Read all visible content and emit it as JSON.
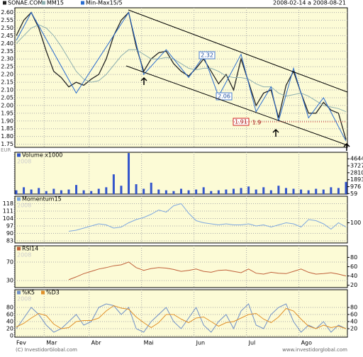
{
  "header": {
    "range": "2008-02-14 a 2008-08-21"
  },
  "footer": {
    "left": "(C) InvestidorGlobal.com",
    "right": "www.investidorglobal.com"
  },
  "chart_data": [
    {
      "type": "line",
      "unit": "EUR",
      "series": [
        {
          "name": "SONAE.COM",
          "color": "#222222",
          "values": [
            2.45,
            2.55,
            2.6,
            2.5,
            2.35,
            2.22,
            2.18,
            2.12,
            2.15,
            2.13,
            2.17,
            2.2,
            2.3,
            2.45,
            2.55,
            2.6,
            2.38,
            2.22,
            2.3,
            2.34,
            2.35,
            2.27,
            2.22,
            2.19,
            2.24,
            2.3,
            2.22,
            2.14,
            2.2,
            2.1,
            2.3,
            2.15,
            2.0,
            2.08,
            2.1,
            1.92,
            2.13,
            2.22,
            2.08,
            1.95,
            1.95,
            2.02,
            1.97,
            1.95,
            1.78
          ]
        },
        {
          "name": "MM15",
          "color": "#8fb0b0",
          "values": [
            2.4,
            2.45,
            2.5,
            2.52,
            2.5,
            2.45,
            2.38,
            2.3,
            2.22,
            2.17,
            2.15,
            2.16,
            2.2,
            2.26,
            2.32,
            2.36,
            2.36,
            2.33,
            2.3,
            2.3,
            2.31,
            2.3,
            2.27,
            2.24,
            2.23,
            2.24,
            2.24,
            2.22,
            2.19,
            2.18,
            2.18,
            2.17,
            2.14,
            2.12,
            2.12,
            2.08,
            2.06,
            2.07,
            2.08,
            2.06,
            2.03,
            2.0,
            1.99,
            1.98,
            1.96
          ]
        },
        {
          "name": "Min-Max15/5",
          "color": "#2a6ccf",
          "x": [
            0,
            2,
            8,
            15,
            17,
            20,
            23,
            25,
            27,
            30,
            32,
            34,
            35,
            37,
            39,
            41,
            44
          ],
          "values": [
            2.42,
            2.6,
            2.08,
            2.6,
            2.2,
            2.36,
            2.18,
            2.32,
            2.06,
            2.33,
            1.96,
            2.12,
            1.9,
            2.24,
            1.92,
            2.05,
            1.77
          ]
        }
      ],
      "annotations": [
        "2.32",
        "2.06",
        "1.91",
        "1.9"
      ],
      "ylim": [
        1.73,
        2.63
      ],
      "yticks": [
        {
          "value": 2.6,
          "label": "2.60"
        },
        {
          "value": 2.55,
          "label": "2.55"
        },
        {
          "value": 2.5,
          "label": "2.50"
        },
        {
          "value": 2.45,
          "label": "2.45"
        },
        {
          "value": 2.4,
          "label": "2.40"
        },
        {
          "value": 2.35,
          "label": "2.35"
        },
        {
          "value": 2.3,
          "label": "2.30"
        },
        {
          "value": 2.25,
          "label": "2.25"
        },
        {
          "value": 2.2,
          "label": "2.20"
        },
        {
          "value": 2.15,
          "label": "2.15"
        },
        {
          "value": 2.1,
          "label": "2.10"
        },
        {
          "value": 2.05,
          "label": "2.05"
        },
        {
          "value": 2.0,
          "label": "2.00"
        },
        {
          "value": 1.95,
          "label": "1.95"
        },
        {
          "value": 1.9,
          "label": "1.90"
        },
        {
          "value": 1.85,
          "label": "1.85"
        },
        {
          "value": 1.8,
          "label": "1.80"
        },
        {
          "value": 1.75,
          "label": "1.75"
        }
      ],
      "grid": true
    },
    {
      "type": "bar",
      "watermark": "2008",
      "series": [
        {
          "name": "Volume x1000",
          "color": "#3355cc",
          "axis": "y2",
          "values": [
            500,
            900,
            600,
            800,
            400,
            700,
            500,
            600,
            1200,
            500,
            400,
            700,
            900,
            2600,
            1100,
            5400,
            1300,
            700,
            1500,
            600,
            500,
            400,
            700,
            500,
            600,
            900,
            400,
            500,
            600,
            700,
            800,
            1000,
            600,
            900,
            500,
            1100,
            800,
            700,
            600,
            500,
            700,
            600,
            900,
            800,
            1600
          ]
        }
      ],
      "y2lim": [
        0,
        5500
      ],
      "y2ticks": [
        4644,
        3727,
        2810,
        1893,
        976,
        59
      ]
    },
    {
      "type": "line",
      "series": [
        {
          "name": "Momentum15",
          "color": "#7fa8e0",
          "values": [
            null,
            null,
            null,
            null,
            null,
            null,
            null,
            92,
            93,
            95,
            97,
            99,
            98,
            95,
            96,
            100,
            103,
            105,
            108,
            112,
            110,
            116,
            118,
            109,
            102,
            100,
            99,
            98,
            99,
            98,
            98,
            99,
            97,
            98,
            96,
            98,
            100,
            99,
            96,
            103,
            102,
            99,
            94,
            100,
            96
          ]
        }
      ],
      "ylim": [
        81,
        125
      ],
      "yticks": [
        118,
        111,
        104,
        97,
        90,
        83
      ],
      "y2lim": [
        81,
        125
      ],
      "y2ticks": [
        100
      ],
      "grid": true
    },
    {
      "type": "line",
      "series": [
        {
          "name": "RSI14",
          "color": "#c0603a",
          "values": [
            null,
            null,
            null,
            null,
            null,
            null,
            null,
            32,
            38,
            45,
            50,
            55,
            58,
            62,
            64,
            70,
            58,
            52,
            56,
            58,
            57,
            54,
            50,
            52,
            55,
            50,
            48,
            52,
            53,
            50,
            47,
            55,
            46,
            44,
            48,
            46,
            45,
            50,
            55,
            48,
            44,
            45,
            47,
            44,
            40
          ]
        }
      ],
      "ylim": [
        15,
        105
      ],
      "yticks": [
        70,
        30
      ],
      "y2lim": [
        15,
        105
      ],
      "y2ticks": [
        80,
        60,
        40,
        20
      ],
      "grid": true
    },
    {
      "type": "line",
      "categories": [
        "Fev",
        null,
        null,
        null,
        "Mar",
        null,
        null,
        null,
        null,
        null,
        "Abr",
        null,
        null,
        null,
        null,
        null,
        null,
        "Mai",
        null,
        null,
        null,
        null,
        null,
        null,
        "Jun",
        null,
        null,
        null,
        null,
        null,
        null,
        "Jul",
        null,
        null,
        null,
        null,
        null,
        null,
        "Ago",
        null,
        null,
        null,
        null,
        null,
        null
      ],
      "series": [
        {
          "name": "%K5",
          "color": "#7090c8",
          "values": [
            20,
            50,
            80,
            60,
            30,
            10,
            20,
            40,
            60,
            30,
            40,
            80,
            90,
            85,
            60,
            80,
            20,
            10,
            40,
            60,
            80,
            40,
            20,
            50,
            80,
            30,
            10,
            40,
            60,
            20,
            70,
            90,
            30,
            20,
            60,
            80,
            90,
            40,
            10,
            30,
            20,
            40,
            10,
            30,
            20
          ]
        },
        {
          "name": "%D3",
          "color": "#e0902a",
          "values": [
            25,
            35,
            50,
            63,
            57,
            33,
            20,
            23,
            40,
            43,
            43,
            50,
            70,
            85,
            78,
            75,
            53,
            37,
            23,
            37,
            60,
            60,
            47,
            37,
            50,
            53,
            40,
            27,
            37,
            40,
            50,
            60,
            63,
            47,
            37,
            53,
            77,
            70,
            47,
            27,
            20,
            30,
            23,
            27,
            20
          ]
        }
      ],
      "ylim": [
        -4,
        130
      ],
      "yticks": [
        80,
        60,
        40,
        20,
        0
      ],
      "y2lim": [
        -4,
        130
      ],
      "y2ticks": [
        80,
        60,
        40,
        20
      ],
      "grid": true
    }
  ]
}
